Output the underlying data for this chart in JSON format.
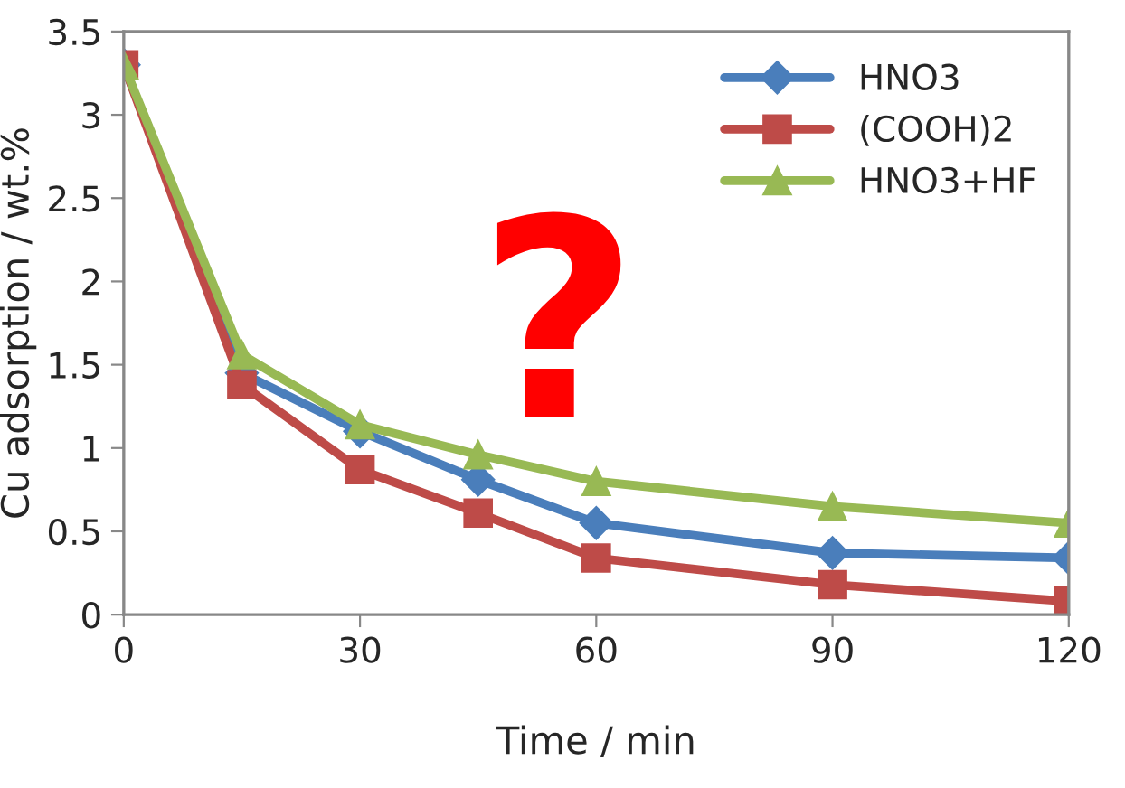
{
  "chart_data": {
    "type": "line",
    "xlabel": "Time / min",
    "ylabel": "Cu adsorption / wt.%",
    "x": [
      0,
      15,
      30,
      45,
      60,
      90,
      120
    ],
    "series": [
      {
        "name": "HNO3",
        "color": "#4a7ebb",
        "marker": "diamond",
        "values": [
          3.3,
          1.45,
          1.1,
          0.81,
          0.55,
          0.37,
          0.34
        ]
      },
      {
        "name": "(COOH)2",
        "color": "#be4b48",
        "marker": "square",
        "values": [
          3.3,
          1.38,
          0.87,
          0.61,
          0.34,
          0.18,
          0.08
        ]
      },
      {
        "name": "HNO3+HF",
        "color": "#98b954",
        "marker": "triangle",
        "values": [
          3.3,
          1.56,
          1.14,
          0.96,
          0.8,
          0.65,
          0.55
        ]
      }
    ],
    "xlim": [
      0,
      120
    ],
    "xticks": [
      0,
      30,
      60,
      90,
      120
    ],
    "ylim": [
      0,
      3.5
    ],
    "yticks": [
      0,
      0.5,
      1,
      1.5,
      2,
      2.5,
      3,
      3.5
    ],
    "grid": false,
    "legend": "top right",
    "line_style": "solid",
    "annotations": [
      "?"
    ]
  }
}
